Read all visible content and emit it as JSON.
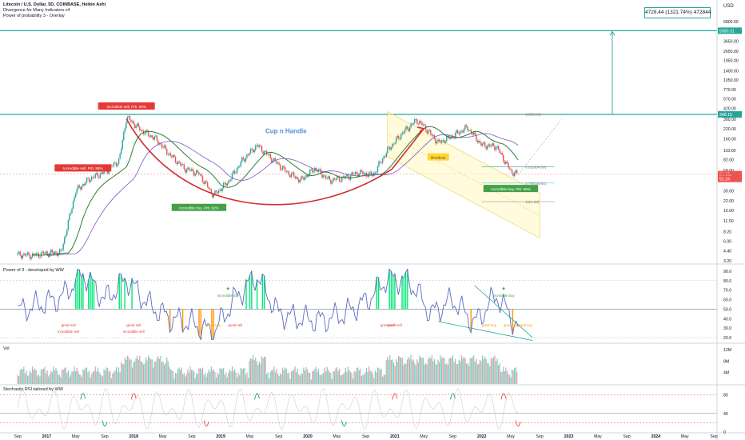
{
  "header": {
    "symbol_line": "Litecoin / U.S. Dollar, 5D, COINBASE, Heikin Ashi",
    "indicator_1": "Divergence for Many Indicators v4",
    "indicator_2": "Power of probability 3 - Overlay"
  },
  "measure_label": "4728.44 (1321.74%) 472844",
  "currency": "USD",
  "colors": {
    "up": "#26a69a",
    "down": "#ef5350",
    "cup": "#d32f2f",
    "ma_green": "#2e7d32",
    "ma_purple": "#7e57c2",
    "channel": "#fff9c4",
    "buy": "#43a047",
    "sell": "#e53935"
  },
  "chart_data": [
    {
      "type": "line",
      "title": "Litecoin / U.S. Dollar, 5D, COINBASE, Heikin Ashi",
      "ylabel": "USD",
      "y_scale": "log",
      "x_ticks": [
        "Sep",
        "2017",
        "May",
        "Sep",
        "2018",
        "May",
        "Sep",
        "2019",
        "May",
        "Sep",
        "2020",
        "May",
        "Sep",
        "2021",
        "May",
        "Sep",
        "2022",
        "May",
        "Sep",
        "2023",
        "May",
        "Sep",
        "2024",
        "May",
        "Sep"
      ],
      "y_ticks": [
        "6800.00",
        "5000.00",
        "3650.00",
        "2650.00",
        "1950.00",
        "1400.00",
        "1050.00",
        "770.00",
        "570.00",
        "420.00",
        "300.00",
        "220.00",
        "160.00",
        "110.00",
        "82.00",
        "58.00",
        "42.00",
        "30.00",
        "22.00",
        "16.00",
        "11.50",
        "8.20",
        "6.00",
        "4.40",
        "3.20"
      ],
      "price_tags": [
        {
          "label": "5080.31",
          "value": 5080.31
        },
        {
          "label": "348.15",
          "value": 348.15
        },
        {
          "label": "51.39",
          "value": 51.39
        },
        {
          "label": "9d 12h",
          "value": 48
        },
        {
          "label": "51.24",
          "value": 44
        }
      ],
      "fib_levels": [
        {
          "label": "1(350.86)",
          "value": 350.86
        },
        {
          "label": "0.618(64.60)",
          "value": 64.6
        },
        {
          "label": "0.786(38.64)",
          "value": 38.64
        },
        {
          "label": "1(21.26)",
          "value": 21.26
        }
      ],
      "pattern_label": "Cup n Handle",
      "callouts": [
        {
          "text": "Incredible sell, Prb: 89%",
          "kind": "sell"
        },
        {
          "text": "Incredible sell, Prb: 85%",
          "kind": "sell"
        },
        {
          "text": "Incredible buy, Prb: 82%",
          "kind": "buy"
        },
        {
          "text": "Breakout",
          "kind": "note"
        },
        {
          "text": "Incredible buy, Prb: 88%",
          "kind": "buy"
        }
      ],
      "series": [
        {
          "name": "LTCUSD",
          "x": [
            "2016-09",
            "2016-11",
            "2017-01",
            "2017-03",
            "2017-05",
            "2017-07",
            "2017-09",
            "2017-11",
            "2017-12",
            "2018-02",
            "2018-04",
            "2018-06",
            "2018-08",
            "2018-10",
            "2018-12",
            "2019-02",
            "2019-04",
            "2019-06",
            "2019-08",
            "2019-10",
            "2019-12",
            "2020-02",
            "2020-04",
            "2020-06",
            "2020-08",
            "2020-10",
            "2020-12",
            "2021-02",
            "2021-04",
            "2021-05",
            "2021-07",
            "2021-09",
            "2021-11",
            "2022-01",
            "2022-03",
            "2022-05",
            "2022-06"
          ],
          "values": [
            3.9,
            3.8,
            4.1,
            4.2,
            30,
            45,
            55,
            80,
            320,
            210,
            160,
            95,
            62,
            52,
            26,
            40,
            80,
            130,
            85,
            56,
            42,
            62,
            42,
            46,
            54,
            50,
            110,
            190,
            290,
            240,
            140,
            175,
            230,
            130,
            125,
            56,
            51.3
          ]
        }
      ],
      "x_range": [
        "2016-07",
        "2024-09"
      ],
      "ylim": [
        3.2,
        6800
      ]
    },
    {
      "type": "line",
      "title": "Power of 3 - developed by WW",
      "y_ticks": [
        "90.0",
        "80.0",
        "70.0",
        "60.0",
        "50.0",
        "40.0",
        "30.0",
        "20.0"
      ],
      "ylim": [
        15,
        95
      ],
      "labels": [
        "Incredible buy",
        "Incredible buy",
        "great sell",
        "incredible sell",
        "great sell",
        "incredible sell",
        "great buy",
        "great sell",
        "great buy",
        "great sell",
        "great sell",
        "great buy",
        "great buy"
      ],
      "series": [
        {
          "name": "P3",
          "x": [
            "2016-09",
            "2016-12",
            "2017-03",
            "2017-06",
            "2017-09",
            "2017-12",
            "2018-03",
            "2018-06",
            "2018-09",
            "2018-12",
            "2019-03",
            "2019-06",
            "2019-09",
            "2019-12",
            "2020-03",
            "2020-06",
            "2020-09",
            "2020-12",
            "2021-03",
            "2021-06",
            "2021-09",
            "2021-12",
            "2022-03",
            "2022-06"
          ],
          "values": [
            48,
            55,
            62,
            88,
            60,
            82,
            55,
            40,
            35,
            25,
            62,
            85,
            45,
            40,
            38,
            45,
            58,
            82,
            80,
            45,
            60,
            35,
            65,
            30
          ]
        }
      ]
    },
    {
      "type": "bar",
      "title": "Vol",
      "y_ticks": [
        "12M",
        "8M",
        "4M"
      ],
      "ylim": [
        0,
        14
      ],
      "values_desc": "volume in millions"
    },
    {
      "type": "line",
      "title": "Stochastic RSI tailored by WW",
      "y_ticks": [
        "80",
        "40",
        "0"
      ],
      "ylim": [
        0,
        100
      ]
    }
  ]
}
